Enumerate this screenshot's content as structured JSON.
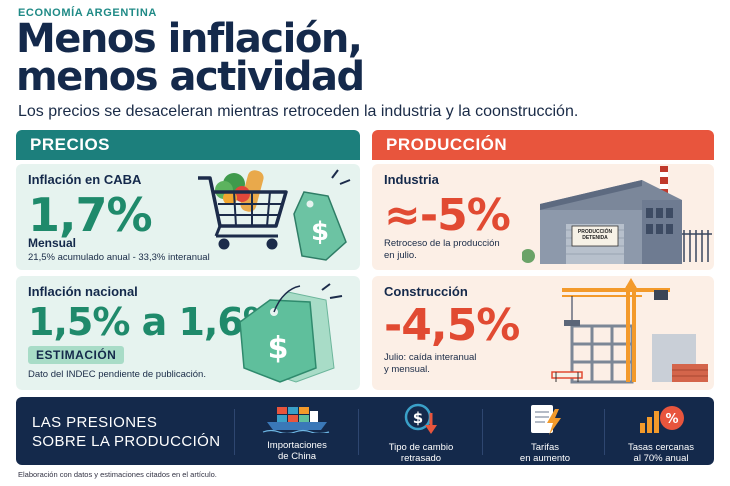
{
  "header": {
    "kicker": "ECONOMÍA ARGENTINA",
    "title_line1": "Menos inflación,",
    "title_line2": "menos actividad",
    "subtitle": "Los precios se desaceleran mientras retroceden la industria y la coonstrucción."
  },
  "prices": {
    "heading": "PRECIOS",
    "caba": {
      "label": "Inflación en CABA",
      "value": "1,7%",
      "period": "Mensual",
      "detail": "21,5% acumulado anual - 33,3% interanual"
    },
    "national": {
      "label": "Inflación nacional",
      "value": "1,5% a 1,6%",
      "badge": "ESTIMACIÓN",
      "detail": "Dato del INDEC pendiente de publicación."
    }
  },
  "production": {
    "heading": "PRODUCCIÓN",
    "industry": {
      "label": "Industria",
      "value": "≈-5%",
      "detail_line1": "Retroceso de la producción",
      "detail_line2": "en julio.",
      "sign_line1": "PRODUCCIÓN",
      "sign_line2": "DETENIDA"
    },
    "construction": {
      "label": "Construcción",
      "value": "-4,5%",
      "detail_line1": "Julio: caída interanual",
      "detail_line2": "y mensual."
    }
  },
  "pressures": {
    "title_line1": "LAS PRESIONES",
    "title_line2": "SOBRE LA PRODUCCIÓN",
    "items": [
      {
        "icon": "cargo-ship-icon",
        "line1": "Importaciones",
        "line2": "de China"
      },
      {
        "icon": "dollar-down-icon",
        "line1": "Tipo de cambio",
        "line2": "retrasado"
      },
      {
        "icon": "bill-lightning-icon",
        "line1": "Tarifas",
        "line2": "en aumento"
      },
      {
        "icon": "percent-bars-icon",
        "line1": "Tasas cercanas",
        "line2": "al 70% anual"
      }
    ]
  },
  "footnote": "Elaboración con datos y estimaciones citados en el artículo.",
  "colors": {
    "navy": "#14294b",
    "teal": "#1c7f7c",
    "green_value": "#1f8a6b",
    "red": "#e8553d",
    "orange": "#f39a2b"
  }
}
